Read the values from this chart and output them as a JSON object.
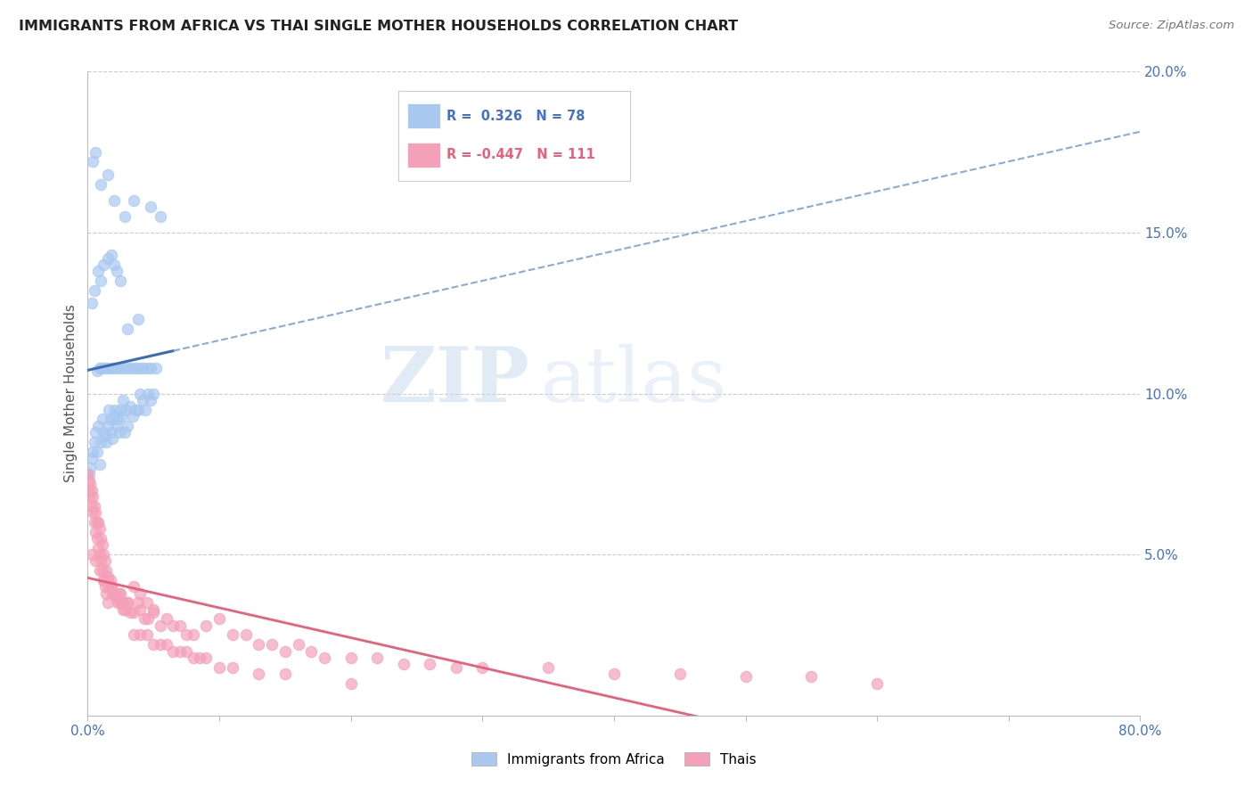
{
  "title": "IMMIGRANTS FROM AFRICA VS THAI SINGLE MOTHER HOUSEHOLDS CORRELATION CHART",
  "source": "Source: ZipAtlas.com",
  "ylabel": "Single Mother Households",
  "xlim": [
    0.0,
    0.8
  ],
  "ylim": [
    0.0,
    0.2
  ],
  "color_blue": "#A8C8F0",
  "color_pink": "#F4A0B8",
  "color_line_blue": "#3B6CB7",
  "color_line_pink": "#E8607A",
  "color_dashed_blue": "#8BAAD8",
  "color_axis_labels": "#4472C4",
  "color_grid": "#cccccc",
  "watermark_zip": "ZIP",
  "watermark_atlas": "atlas",
  "legend_text_blue": "R =  0.326   N = 78",
  "legend_text_pink": "R = -0.447   N = 111",
  "africa_x": [
    0.001,
    0.002,
    0.003,
    0.004,
    0.005,
    0.006,
    0.007,
    0.008,
    0.009,
    0.01,
    0.011,
    0.012,
    0.013,
    0.014,
    0.015,
    0.016,
    0.017,
    0.018,
    0.019,
    0.02,
    0.021,
    0.022,
    0.023,
    0.024,
    0.025,
    0.026,
    0.027,
    0.028,
    0.029,
    0.03,
    0.032,
    0.034,
    0.036,
    0.038,
    0.04,
    0.042,
    0.044,
    0.046,
    0.048,
    0.05,
    0.003,
    0.005,
    0.008,
    0.01,
    0.012,
    0.015,
    0.018,
    0.02,
    0.022,
    0.025,
    0.007,
    0.009,
    0.011,
    0.013,
    0.016,
    0.019,
    0.021,
    0.024,
    0.027,
    0.03,
    0.033,
    0.036,
    0.039,
    0.042,
    0.045,
    0.048,
    0.052,
    0.038,
    0.028,
    0.02,
    0.015,
    0.01,
    0.006,
    0.004,
    0.035,
    0.055,
    0.048,
    0.03
  ],
  "africa_y": [
    0.075,
    0.077,
    0.08,
    0.082,
    0.085,
    0.088,
    0.082,
    0.09,
    0.078,
    0.085,
    0.092,
    0.088,
    0.087,
    0.085,
    0.09,
    0.095,
    0.092,
    0.088,
    0.086,
    0.093,
    0.095,
    0.09,
    0.092,
    0.088,
    0.095,
    0.093,
    0.098,
    0.088,
    0.095,
    0.09,
    0.096,
    0.093,
    0.095,
    0.095,
    0.1,
    0.098,
    0.095,
    0.1,
    0.098,
    0.1,
    0.128,
    0.132,
    0.138,
    0.135,
    0.14,
    0.142,
    0.143,
    0.14,
    0.138,
    0.135,
    0.107,
    0.108,
    0.108,
    0.108,
    0.108,
    0.108,
    0.108,
    0.108,
    0.108,
    0.108,
    0.108,
    0.108,
    0.108,
    0.108,
    0.108,
    0.108,
    0.108,
    0.123,
    0.155,
    0.16,
    0.168,
    0.165,
    0.175,
    0.172,
    0.16,
    0.155,
    0.158,
    0.12
  ],
  "thai_x": [
    0.0,
    0.001,
    0.001,
    0.002,
    0.002,
    0.003,
    0.003,
    0.004,
    0.004,
    0.005,
    0.005,
    0.006,
    0.006,
    0.007,
    0.007,
    0.008,
    0.008,
    0.009,
    0.009,
    0.01,
    0.01,
    0.011,
    0.011,
    0.012,
    0.012,
    0.013,
    0.013,
    0.014,
    0.014,
    0.015,
    0.015,
    0.016,
    0.017,
    0.018,
    0.019,
    0.02,
    0.021,
    0.022,
    0.023,
    0.024,
    0.025,
    0.026,
    0.027,
    0.028,
    0.03,
    0.032,
    0.035,
    0.038,
    0.04,
    0.043,
    0.046,
    0.05,
    0.055,
    0.06,
    0.065,
    0.07,
    0.075,
    0.08,
    0.09,
    0.1,
    0.11,
    0.12,
    0.13,
    0.14,
    0.15,
    0.16,
    0.17,
    0.18,
    0.2,
    0.22,
    0.24,
    0.26,
    0.28,
    0.3,
    0.35,
    0.4,
    0.45,
    0.5,
    0.55,
    0.6,
    0.003,
    0.006,
    0.009,
    0.012,
    0.015,
    0.018,
    0.021,
    0.024,
    0.027,
    0.03,
    0.035,
    0.04,
    0.045,
    0.05,
    0.035,
    0.04,
    0.045,
    0.05,
    0.055,
    0.06,
    0.065,
    0.07,
    0.075,
    0.08,
    0.085,
    0.09,
    0.1,
    0.11,
    0.13,
    0.15,
    0.2
  ],
  "thai_y": [
    0.075,
    0.073,
    0.07,
    0.072,
    0.068,
    0.07,
    0.065,
    0.068,
    0.063,
    0.065,
    0.06,
    0.063,
    0.057,
    0.06,
    0.055,
    0.06,
    0.052,
    0.058,
    0.05,
    0.055,
    0.048,
    0.053,
    0.045,
    0.05,
    0.042,
    0.048,
    0.04,
    0.045,
    0.038,
    0.043,
    0.035,
    0.04,
    0.042,
    0.04,
    0.038,
    0.038,
    0.037,
    0.037,
    0.035,
    0.035,
    0.038,
    0.035,
    0.033,
    0.033,
    0.035,
    0.032,
    0.032,
    0.035,
    0.033,
    0.03,
    0.03,
    0.033,
    0.028,
    0.03,
    0.028,
    0.028,
    0.025,
    0.025,
    0.028,
    0.03,
    0.025,
    0.025,
    0.022,
    0.022,
    0.02,
    0.022,
    0.02,
    0.018,
    0.018,
    0.018,
    0.016,
    0.016,
    0.015,
    0.015,
    0.015,
    0.013,
    0.013,
    0.012,
    0.012,
    0.01,
    0.05,
    0.048,
    0.045,
    0.042,
    0.042,
    0.04,
    0.038,
    0.038,
    0.035,
    0.035,
    0.04,
    0.038,
    0.035,
    0.032,
    0.025,
    0.025,
    0.025,
    0.022,
    0.022,
    0.022,
    0.02,
    0.02,
    0.02,
    0.018,
    0.018,
    0.018,
    0.015,
    0.015,
    0.013,
    0.013,
    0.01
  ]
}
